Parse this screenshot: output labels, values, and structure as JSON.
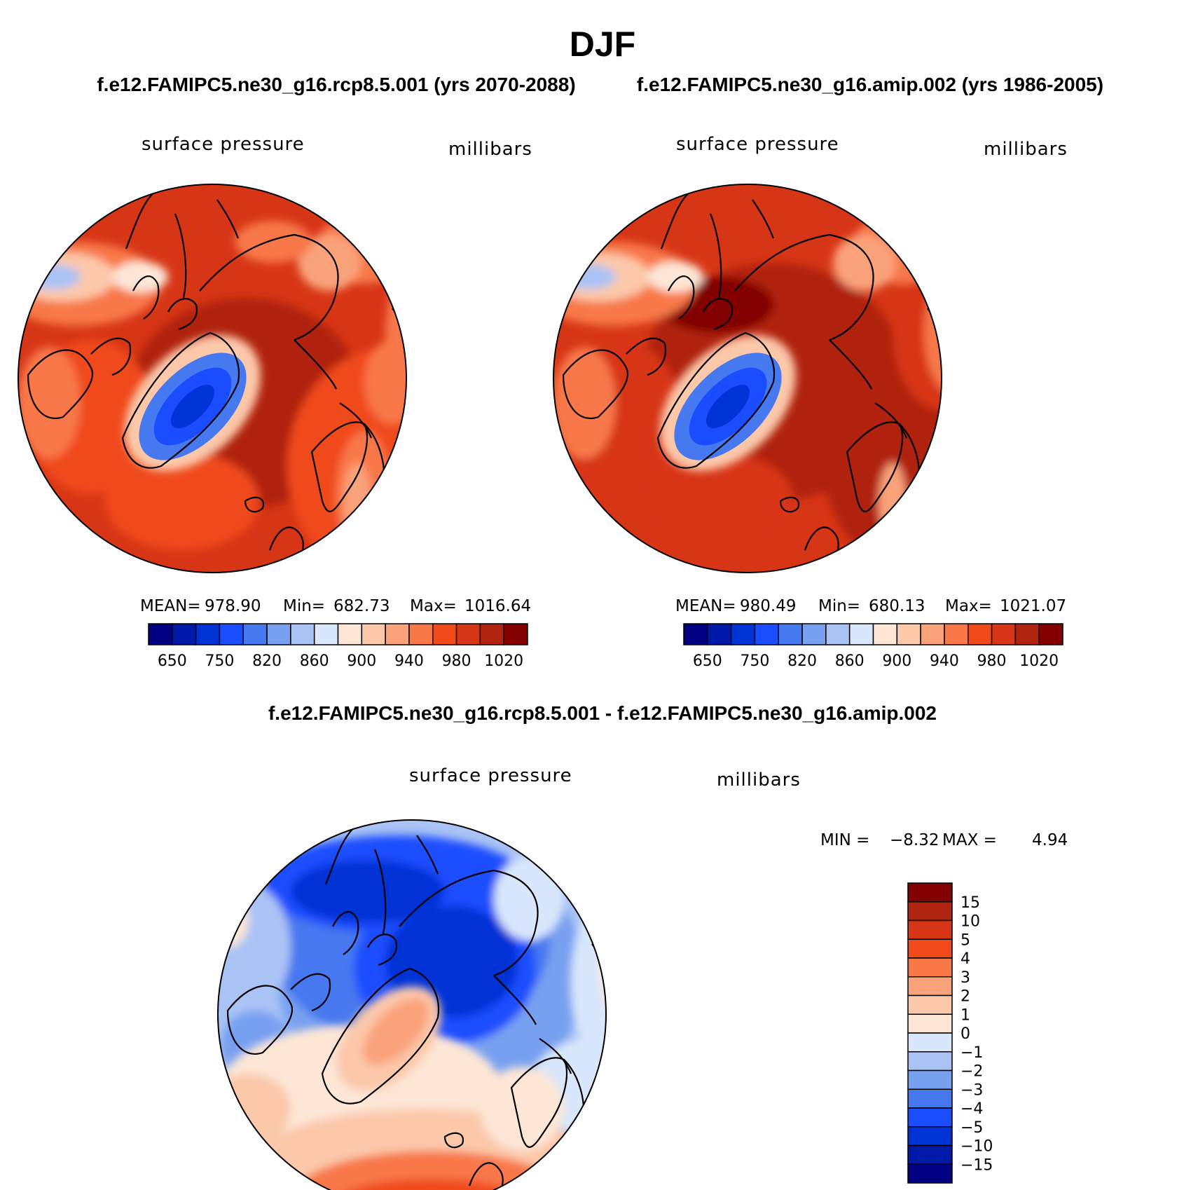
{
  "title": "DJF",
  "panels": [
    {
      "case_title": "f.e12.FAMIPC5.ne30_g16.rcp8.5.001 (yrs 2070-2088)",
      "variable": "surface pressure",
      "units": "millibars",
      "stats": {
        "mean_label": "MEAN=",
        "mean": "978.90",
        "min_label": "Min=",
        "min": "682.73",
        "max_label": "Max=",
        "max": "1016.64"
      }
    },
    {
      "case_title": "f.e12.FAMIPC5.ne30_g16.amip.002 (yrs 1986-2005)",
      "variable": "surface pressure",
      "units": "millibars",
      "stats": {
        "mean_label": "MEAN=",
        "mean": "980.49",
        "min_label": "Min=",
        "min": "680.13",
        "max_label": "Max=",
        "max": "1021.07"
      }
    }
  ],
  "field_colorbar": {
    "colors": [
      "#000080",
      "#0019a8",
      "#0033d6",
      "#1a4dff",
      "#4678f0",
      "#78a0f0",
      "#aac3f5",
      "#d8e7fb",
      "#fde6d6",
      "#fcc8aa",
      "#faa27a",
      "#f87848",
      "#f04a1a",
      "#d73616",
      "#b02410",
      "#820000"
    ],
    "labels": [
      "650",
      "750",
      "820",
      "860",
      "900",
      "940",
      "980",
      "1020"
    ]
  },
  "difference": {
    "title": "f.e12.FAMIPC5.ne30_g16.rcp8.5.001 - f.e12.FAMIPC5.ne30_g16.amip.002",
    "variable": "surface pressure",
    "units": "millibars",
    "min_label": "MIN =",
    "min": "−8.32",
    "max_label": "MAX =",
    "max": "4.94",
    "colorbar": {
      "colors_top_to_bottom": [
        "#820000",
        "#b02410",
        "#d73616",
        "#f04a1a",
        "#f87848",
        "#faa27a",
        "#fcc8aa",
        "#fde6d6",
        "#d8e7fb",
        "#aac3f5",
        "#78a0f0",
        "#4678f0",
        "#1a4dff",
        "#0033d6",
        "#0019a8",
        "#000080"
      ],
      "labels": [
        "15",
        "10",
        "5",
        "4",
        "3",
        "2",
        "1",
        "0",
        "−1",
        "−2",
        "−3",
        "−4",
        "−5",
        "−10",
        "−15"
      ]
    }
  }
}
